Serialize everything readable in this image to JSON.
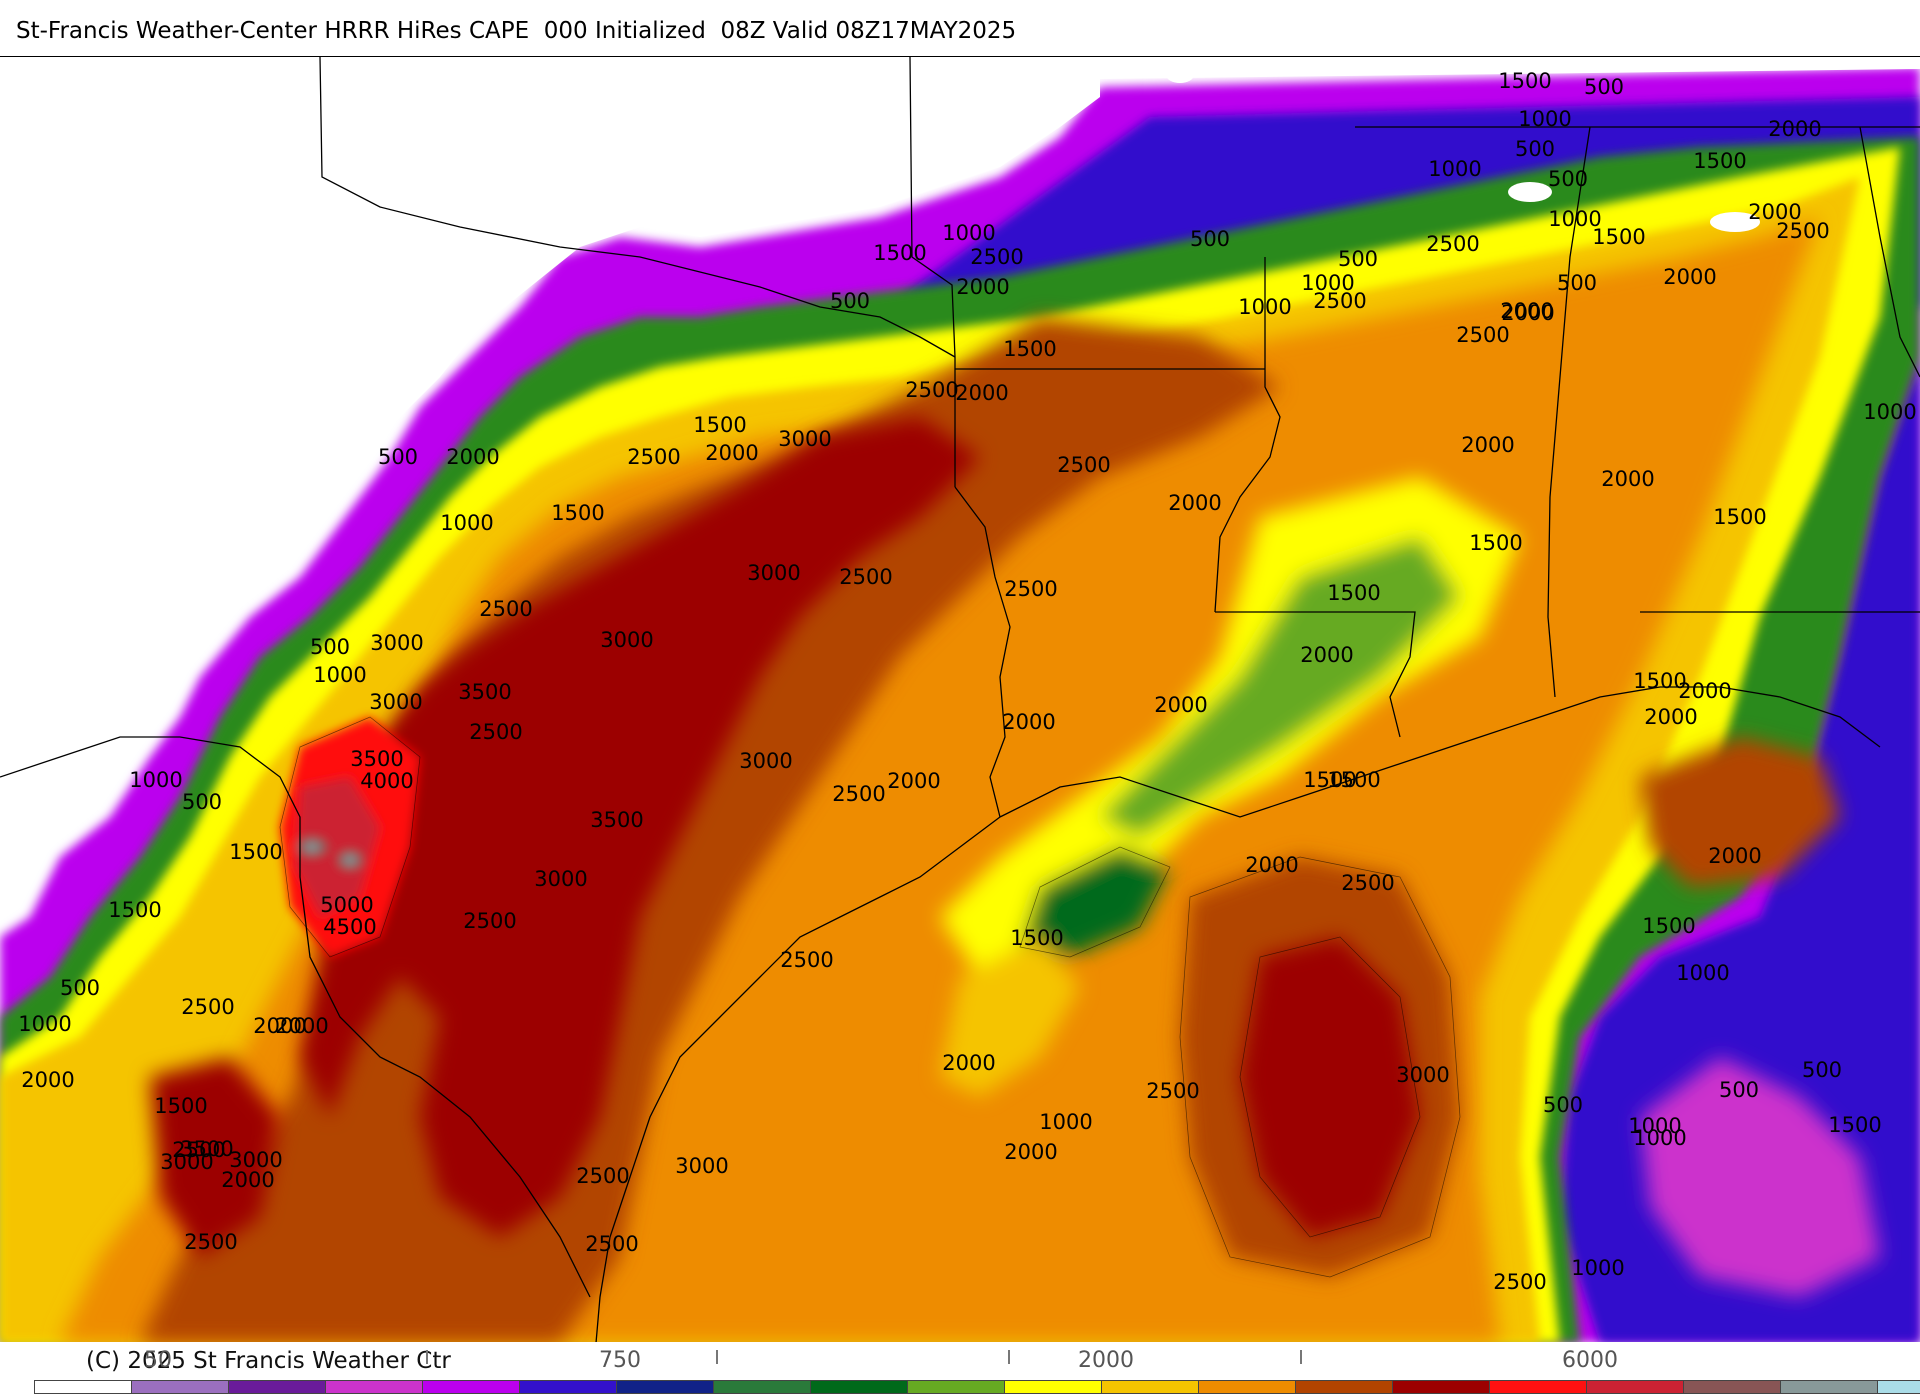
{
  "header": {
    "title": "St-Francis Weather-Center HRRR HiRes CAPE  000 Initialized  08Z Valid 08Z17MAY2025"
  },
  "footer": {
    "copyright": "(C) 2025 St Francis Weather Ctr"
  },
  "colorbar": {
    "tick_labels": [
      "50",
      "750",
      "2000",
      "6000"
    ],
    "segment_colors": [
      "#ffffff",
      "#9b6fbf",
      "#6a1b9a",
      "#cc33cc",
      "#bb00ee",
      "#3311cc",
      "#112288",
      "#2a7a3a",
      "#006a1a",
      "#66aa22",
      "#ffff00",
      "#f5c400",
      "#ee8c00",
      "#b24400",
      "#9c0000",
      "#ff1111",
      "#cc2233",
      "#885555",
      "#889999",
      "#aadde8"
    ]
  },
  "map": {
    "contour_labels": [
      "1500",
      "500",
      "1000",
      "2000",
      "500",
      "1500",
      "1000",
      "500",
      "2000",
      "2500",
      "1500",
      "1000",
      "2500",
      "500",
      "500",
      "2000",
      "500",
      "1000",
      "2500",
      "1000",
      "1500",
      "2500",
      "2000",
      "2000",
      "500",
      "1000",
      "2000",
      "2500",
      "2000",
      "2500",
      "500",
      "2000",
      "1500",
      "2500",
      "2000",
      "1500",
      "3000",
      "1000",
      "2000",
      "2500",
      "1500",
      "2000",
      "1000",
      "1500",
      "3000",
      "2500",
      "2500",
      "2000",
      "1500",
      "1500",
      "500",
      "3000",
      "2000",
      "1000",
      "1500",
      "2000",
      "2000",
      "2500",
      "3000",
      "3500",
      "3000",
      "2500",
      "2000",
      "2000",
      "3500",
      "4000",
      "3000",
      "2500",
      "2000",
      "1500",
      "1000",
      "500",
      "3500",
      "1500",
      "2000",
      "2500",
      "1500",
      "3000",
      "1500",
      "2000",
      "5000",
      "2500",
      "2500",
      "1500",
      "1000",
      "4500",
      "2500",
      "1500",
      "1000",
      "500",
      "2000",
      "3000",
      "2000",
      "1500",
      "2500",
      "2500",
      "500",
      "500",
      "1000",
      "1000",
      "3000",
      "3000",
      "3500",
      "2000",
      "1000",
      "2000",
      "3000",
      "2500",
      "2000",
      "500",
      "2500",
      "2500",
      "2000",
      "1500",
      "1000",
      "2500"
    ]
  }
}
